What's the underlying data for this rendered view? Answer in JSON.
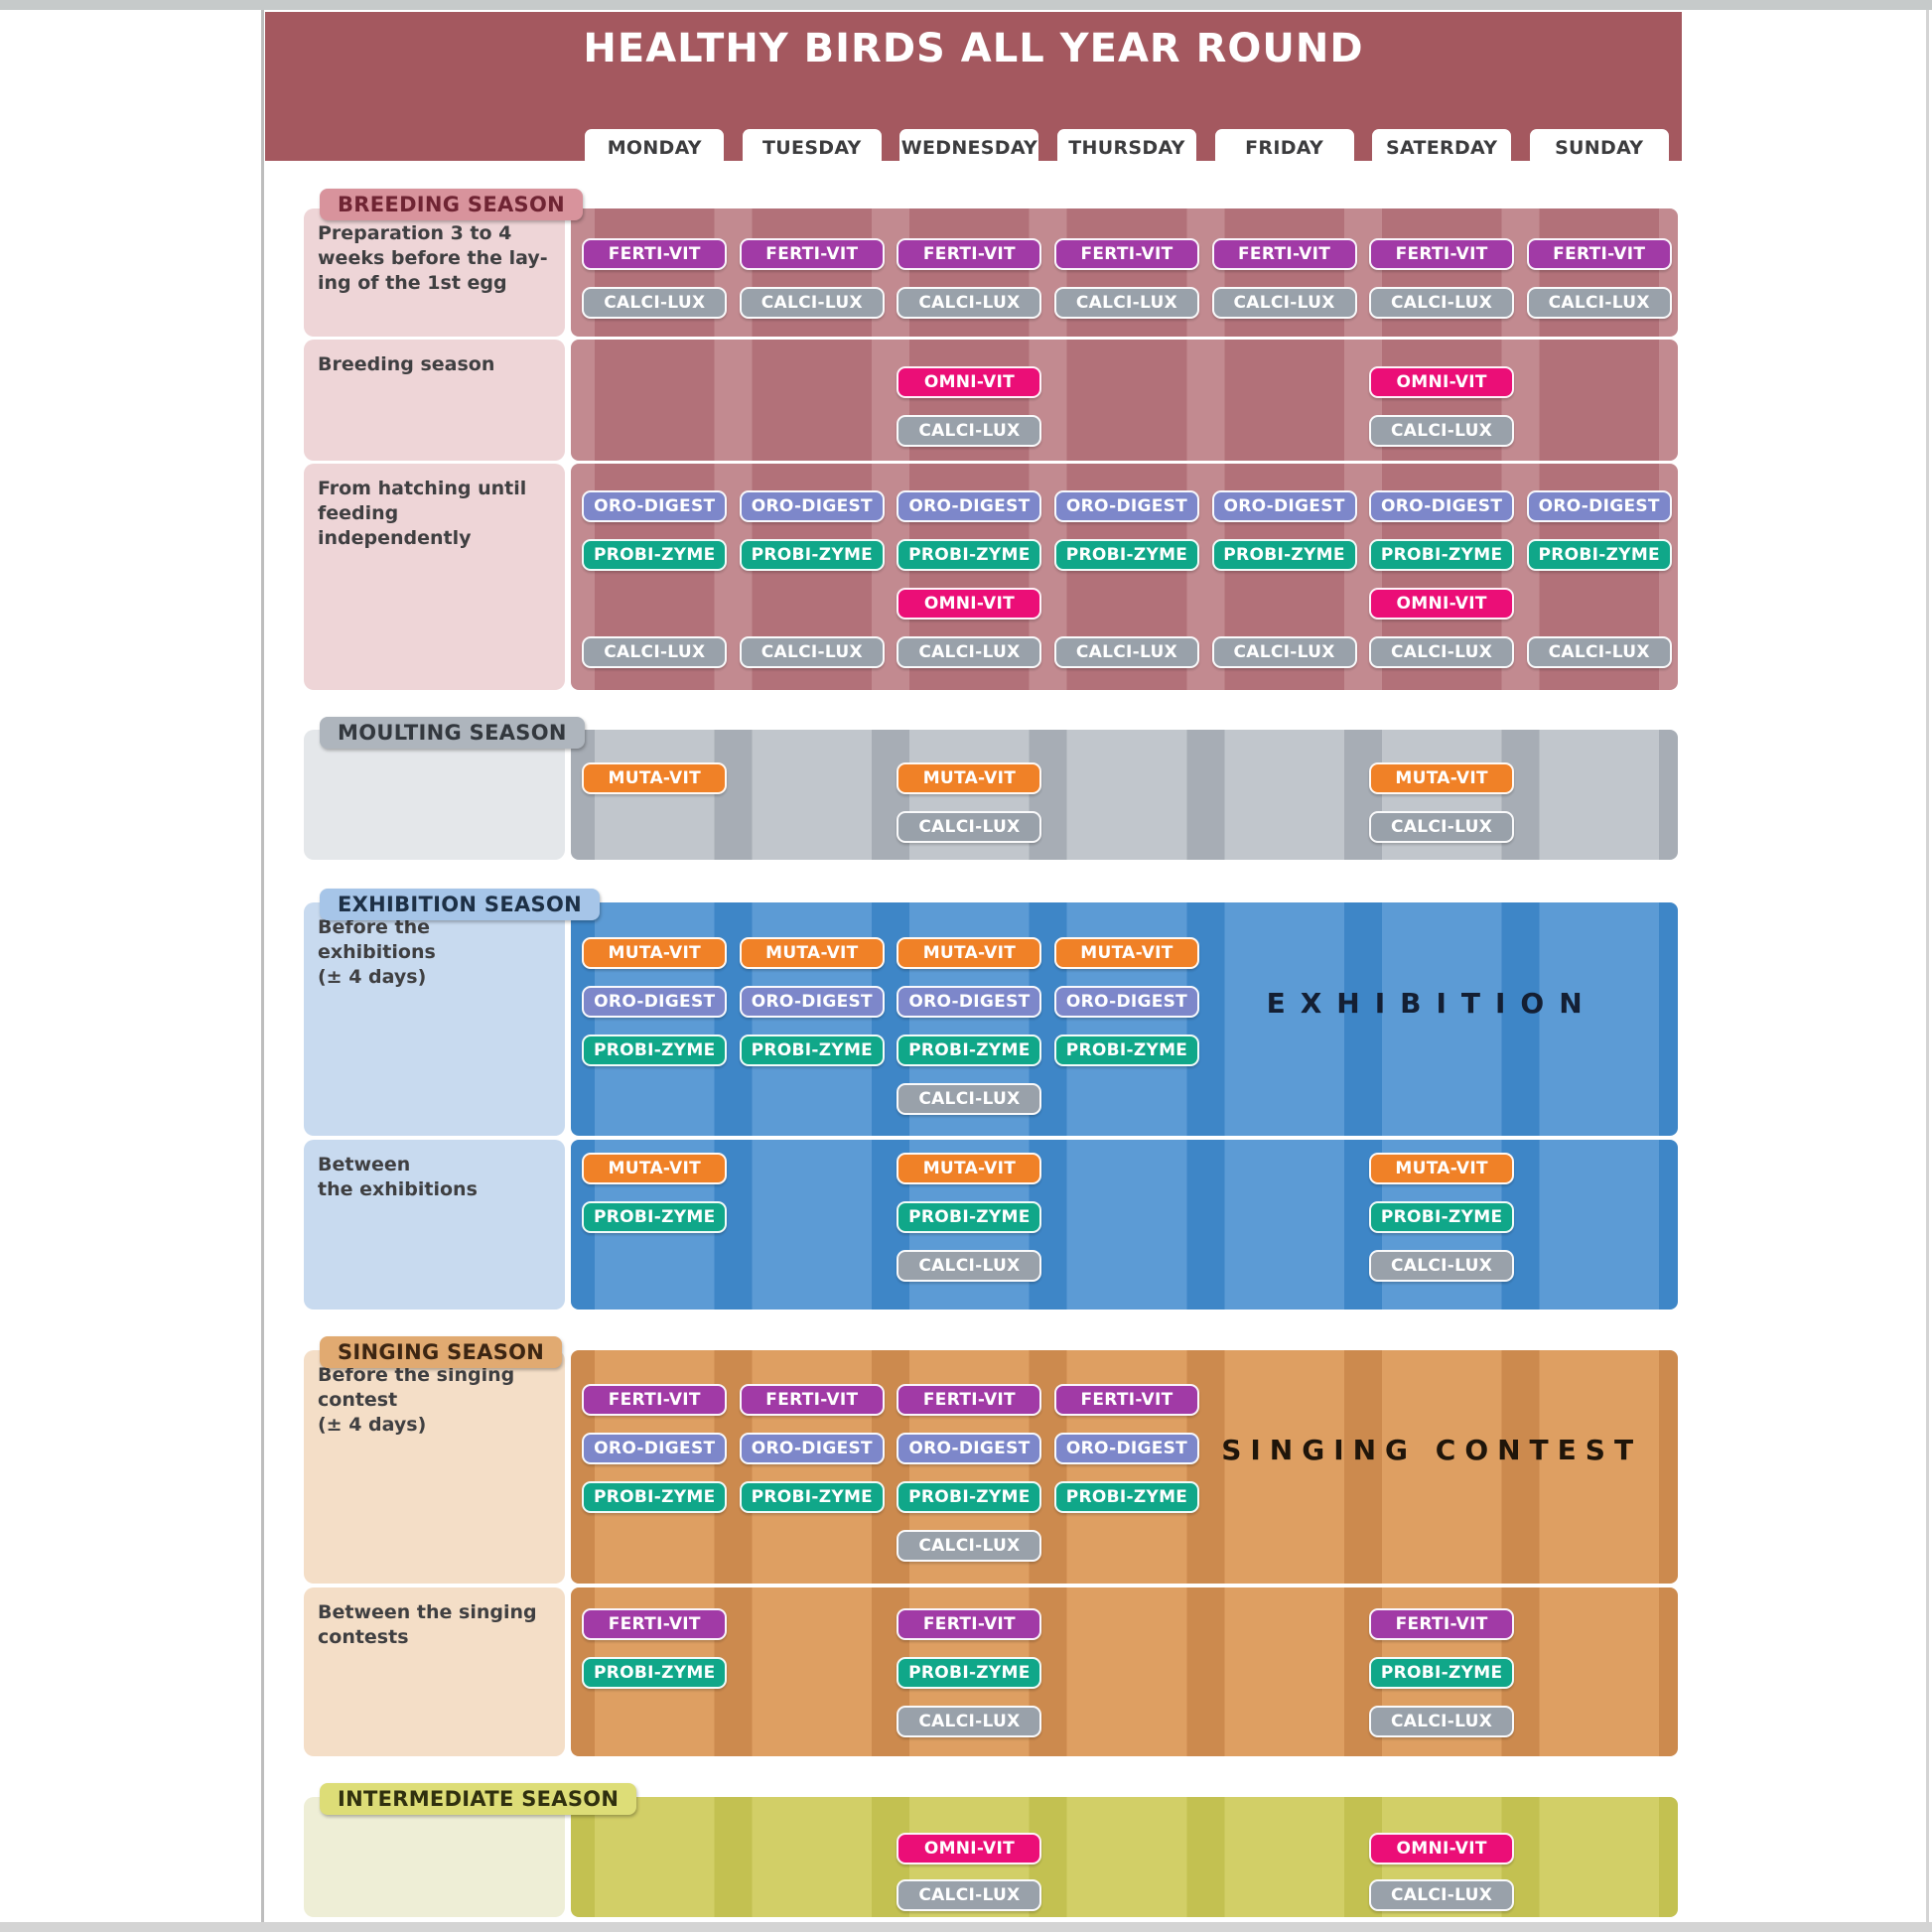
{
  "title": "HEALTHY BIRDS ALL YEAR ROUND",
  "days": [
    "MONDAY",
    "TUESDAY",
    "WEDNESDAY",
    "THURSDAY",
    "FRIDAY",
    "SATERDAY",
    "SUNDAY"
  ],
  "products": {
    "FERTI-VIT": "#a13aa6",
    "CALCI-LUX": "#99a1aa",
    "OMNI-VIT": "#eb0e77",
    "ORO-DIGEST": "#7d87ca",
    "PROBI-ZYME": "#10a789",
    "MUTA-VIT": "#f08127"
  },
  "colors": {
    "title_bar": "#a4585f",
    "day_tab_bg": "#ffffff",
    "day_tab_text": "#3c3c3e",
    "label_text": "#3f3f41"
  },
  "sections": [
    {
      "id": "breeding",
      "header": "BREEDING SEASON",
      "colors": {
        "band": "#b27179",
        "stripe": "#c28a90",
        "label_bg": "#eed5d7",
        "header_bg": "#d8939c",
        "header_text": "#6f2433"
      },
      "rows": [
        {
          "label": "Preparation 3 to 4\nweeks before the lay-\ning of the 1st egg",
          "lines": [
            {
              "product": "FERTI-VIT",
              "days": [
                0,
                1,
                2,
                3,
                4,
                5,
                6
              ]
            },
            {
              "product": "CALCI-LUX",
              "days": [
                0,
                1,
                2,
                3,
                4,
                5,
                6
              ]
            }
          ]
        },
        {
          "label": "Breeding season",
          "lines": [
            {
              "product": "OMNI-VIT",
              "days": [
                2,
                5
              ]
            },
            {
              "product": "CALCI-LUX",
              "days": [
                2,
                5
              ]
            }
          ]
        },
        {
          "label": "From hatching until\nfeeding independently",
          "lines": [
            {
              "product": "ORO-DIGEST",
              "days": [
                0,
                1,
                2,
                3,
                4,
                5,
                6
              ]
            },
            {
              "product": "PROBI-ZYME",
              "days": [
                0,
                1,
                2,
                3,
                4,
                5,
                6
              ]
            },
            {
              "product": "OMNI-VIT",
              "days": [
                2,
                5
              ]
            },
            {
              "product": "CALCI-LUX",
              "days": [
                0,
                1,
                2,
                3,
                4,
                5,
                6
              ]
            }
          ]
        }
      ]
    },
    {
      "id": "moulting",
      "header": "MOULTING SEASON",
      "colors": {
        "band": "#c1c6cc",
        "stripe": "#a7adb5",
        "label_bg": "#e4e7ea",
        "header_bg": "#aeb5bd",
        "header_text": "#33383e"
      },
      "rows": [
        {
          "label": "",
          "lines": [
            {
              "product": "MUTA-VIT",
              "days": [
                0,
                2,
                5
              ]
            },
            {
              "product": "CALCI-LUX",
              "days": [
                2,
                5
              ]
            }
          ]
        }
      ]
    },
    {
      "id": "exhibition",
      "header": "EXHIBITION SEASON",
      "colors": {
        "band": "#5c9bd5",
        "stripe": "#3e86c7",
        "label_bg": "#c8daef",
        "header_bg": "#a6c5e8",
        "header_text": "#1d3046",
        "note_text": "#141f33"
      },
      "rows": [
        {
          "label": "Before the exhibitions\n(± 4 days)",
          "note": "EXHIBITION",
          "lines": [
            {
              "product": "MUTA-VIT",
              "days": [
                0,
                1,
                2,
                3
              ]
            },
            {
              "product": "ORO-DIGEST",
              "days": [
                0,
                1,
                2,
                3
              ]
            },
            {
              "product": "PROBI-ZYME",
              "days": [
                0,
                1,
                2,
                3
              ]
            },
            {
              "product": "CALCI-LUX",
              "days": [
                2
              ]
            }
          ]
        },
        {
          "label": "Between\nthe exhibitions",
          "lines": [
            {
              "product": "MUTA-VIT",
              "days": [
                0,
                2,
                5
              ]
            },
            {
              "product": "PROBI-ZYME",
              "days": [
                0,
                2,
                5
              ]
            },
            {
              "product": "CALCI-LUX",
              "days": [
                2,
                5
              ]
            }
          ]
        }
      ]
    },
    {
      "id": "singing",
      "header": "SINGING SEASON",
      "colors": {
        "band": "#de9f62",
        "stripe": "#cc8a4e",
        "label_bg": "#f4dec7",
        "header_bg": "#e1aa71",
        "header_text": "#3c2512",
        "note_text": "#1f150a"
      },
      "rows": [
        {
          "label": "Before the singing\ncontest\n(± 4 days)",
          "note": "SINGING CONTEST",
          "lines": [
            {
              "product": "FERTI-VIT",
              "days": [
                0,
                1,
                2,
                3
              ]
            },
            {
              "product": "ORO-DIGEST",
              "days": [
                0,
                1,
                2,
                3
              ]
            },
            {
              "product": "PROBI-ZYME",
              "days": [
                0,
                1,
                2,
                3
              ]
            },
            {
              "product": "CALCI-LUX",
              "days": [
                2
              ]
            }
          ]
        },
        {
          "label": "Between the singing\ncontests",
          "lines": [
            {
              "product": "FERTI-VIT",
              "days": [
                0,
                2,
                5
              ]
            },
            {
              "product": "PROBI-ZYME",
              "days": [
                0,
                2,
                5
              ]
            },
            {
              "product": "CALCI-LUX",
              "days": [
                2,
                5
              ]
            }
          ]
        }
      ]
    },
    {
      "id": "intermediate",
      "header": "INTERMEDIATE SEASON",
      "colors": {
        "band": "#d2cf67",
        "stripe": "#c3c151",
        "label_bg": "#eeeed6",
        "header_bg": "#dddd77",
        "header_text": "#30300f"
      },
      "rows": [
        {
          "label": "",
          "lines": [
            {
              "product": "OMNI-VIT",
              "days": [
                2,
                5
              ]
            },
            {
              "product": "CALCI-LUX",
              "days": [
                2,
                5
              ]
            }
          ]
        }
      ]
    }
  ]
}
